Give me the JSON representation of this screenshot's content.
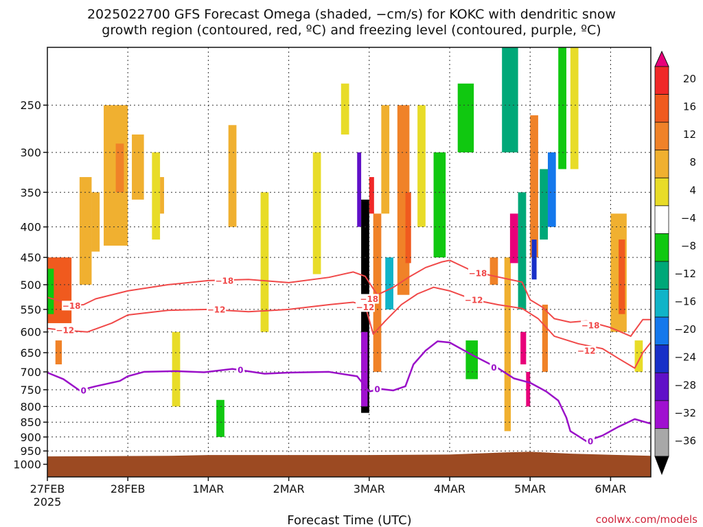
{
  "title": {
    "line1": "2025022700 GFS Forecast Omega (shaded, −cm/s) for KOKC with dendritic snow",
    "line2": "growth region (contoured, red, ºC) and freezing level (contoured, purple, ºC)"
  },
  "credit": "coolwx.com/models",
  "colors": {
    "dgz": "#f04848",
    "freezing": "#9a10c8",
    "ground": "#9c4a22"
  },
  "chart_data": {
    "type": "heatmap",
    "title": "2025022700 GFS Forecast Omega (shaded, −cm/s) for KOKC with dendritic snow growth region (contoured, red, ºC) and freezing level (contoured, purple, ºC)",
    "xlabel": "Forecast Time (UTC)",
    "ylabel": "",
    "x_unit": "days since 27FEB 00Z",
    "xlim": [
      0,
      7.5
    ],
    "ylim_hpa": [
      200,
      1050
    ],
    "y_scale": "log-pressure",
    "grid": true,
    "x_ticks": [
      {
        "label": "27FEB",
        "x": 0
      },
      {
        "label": "28FEB",
        "x": 1
      },
      {
        "label": "1MAR",
        "x": 2
      },
      {
        "label": "2MAR",
        "x": 3
      },
      {
        "label": "3MAR",
        "x": 4
      },
      {
        "label": "4MAR",
        "x": 5
      },
      {
        "label": "5MAR",
        "x": 6
      },
      {
        "label": "6MAR",
        "x": 7
      }
    ],
    "x_sublabel": "2025",
    "y_ticks": [
      "250",
      "300",
      "350",
      "400",
      "450",
      "500",
      "550",
      "600",
      "650",
      "700",
      "750",
      "800",
      "850",
      "900",
      "950",
      "1000"
    ],
    "colorbar": {
      "labels": [
        "20",
        "16",
        "12",
        "8",
        "4",
        "−4",
        "−8",
        "−12",
        "−16",
        "−20",
        "−24",
        "−28",
        "−32",
        "−36"
      ],
      "colors": [
        "#e8007a",
        "#f02828",
        "#f05a1e",
        "#f08228",
        "#f0b030",
        "#e8dc28",
        "#ffffff",
        "#10c810",
        "#00a878",
        "#10b4c8",
        "#1478ec",
        "#1830c8",
        "#6010c8",
        "#a010d0",
        "#a8a8a8",
        "#000000"
      ]
    },
    "series": [
      {
        "name": "-18",
        "color": "#f04848",
        "points": [
          [
            0,
            525
          ],
          [
            0.15,
            532
          ],
          [
            0.3,
            542
          ],
          [
            0.45,
            540
          ],
          [
            0.6,
            528
          ],
          [
            1.0,
            512
          ],
          [
            1.5,
            500
          ],
          [
            2.0,
            492
          ],
          [
            2.5,
            490
          ],
          [
            3.0,
            496
          ],
          [
            3.5,
            486
          ],
          [
            3.8,
            476
          ],
          [
            3.95,
            484
          ],
          [
            4.1,
            520
          ],
          [
            4.3,
            505
          ],
          [
            4.5,
            485
          ],
          [
            4.7,
            468
          ],
          [
            4.9,
            458
          ],
          [
            5.0,
            455
          ],
          [
            5.25,
            472
          ],
          [
            5.5,
            482
          ],
          [
            5.9,
            495
          ],
          [
            6.0,
            530
          ],
          [
            6.15,
            545
          ],
          [
            6.3,
            570
          ],
          [
            6.5,
            578
          ],
          [
            6.7,
            575
          ],
          [
            7.0,
            590
          ],
          [
            7.25,
            610
          ],
          [
            7.4,
            572
          ],
          [
            7.5,
            572
          ]
        ]
      },
      {
        "name": "-12",
        "color": "#f04848",
        "points": [
          [
            0,
            592
          ],
          [
            0.2,
            596
          ],
          [
            0.5,
            600
          ],
          [
            0.8,
            580
          ],
          [
            1.0,
            562
          ],
          [
            1.5,
            552
          ],
          [
            2.0,
            550
          ],
          [
            2.5,
            555
          ],
          [
            3.0,
            550
          ],
          [
            3.5,
            540
          ],
          [
            3.8,
            535
          ],
          [
            3.95,
            542
          ],
          [
            4.05,
            605
          ],
          [
            4.2,
            575
          ],
          [
            4.4,
            540
          ],
          [
            4.6,
            518
          ],
          [
            4.8,
            505
          ],
          [
            5.0,
            512
          ],
          [
            5.3,
            530
          ],
          [
            5.6,
            540
          ],
          [
            5.9,
            548
          ],
          [
            6.1,
            570
          ],
          [
            6.3,
            610
          ],
          [
            6.6,
            628
          ],
          [
            6.9,
            640
          ],
          [
            7.1,
            665
          ],
          [
            7.3,
            690
          ],
          [
            7.4,
            650
          ],
          [
            7.5,
            625
          ]
        ]
      },
      {
        "name": "0",
        "color": "#9a10c8",
        "points": [
          [
            0,
            702
          ],
          [
            0.2,
            720
          ],
          [
            0.4,
            752
          ],
          [
            0.6,
            740
          ],
          [
            0.9,
            725
          ],
          [
            1.0,
            712
          ],
          [
            1.2,
            700
          ],
          [
            1.6,
            698
          ],
          [
            1.95,
            701
          ],
          [
            2.3,
            692
          ],
          [
            2.7,
            705
          ],
          [
            3.0,
            702
          ],
          [
            3.5,
            700
          ],
          [
            3.85,
            712
          ],
          [
            4.0,
            755
          ],
          [
            4.15,
            748
          ],
          [
            4.3,
            752
          ],
          [
            4.45,
            740
          ],
          [
            4.55,
            680
          ],
          [
            4.7,
            645
          ],
          [
            4.85,
            622
          ],
          [
            5.0,
            625
          ],
          [
            5.3,
            658
          ],
          [
            5.6,
            690
          ],
          [
            5.8,
            718
          ],
          [
            6.0,
            730
          ],
          [
            6.2,
            755
          ],
          [
            6.35,
            782
          ],
          [
            6.45,
            835
          ],
          [
            6.5,
            880
          ],
          [
            6.7,
            915
          ],
          [
            6.9,
            895
          ],
          [
            7.1,
            865
          ],
          [
            7.3,
            840
          ],
          [
            7.5,
            855
          ]
        ]
      }
    ],
    "contour_labels": [
      {
        "text": "−18",
        "x": 0.3,
        "p": 542
      },
      {
        "text": "−12",
        "x": 0.22,
        "p": 596
      },
      {
        "text": "−18",
        "x": 2.2,
        "p": 492
      },
      {
        "text": "−12",
        "x": 2.1,
        "p": 550
      },
      {
        "text": "−18",
        "x": 4.0,
        "p": 528
      },
      {
        "text": "−12",
        "x": 3.95,
        "p": 545
      },
      {
        "text": "−18",
        "x": 5.35,
        "p": 478
      },
      {
        "text": "−12",
        "x": 5.3,
        "p": 530
      },
      {
        "text": "−18",
        "x": 6.75,
        "p": 585
      },
      {
        "text": "−12",
        "x": 6.7,
        "p": 645
      },
      {
        "text": "0",
        "x": 0.45,
        "p": 752
      },
      {
        "text": "0",
        "x": 2.4,
        "p": 695
      },
      {
        "text": "0",
        "x": 4.1,
        "p": 748
      },
      {
        "text": "0",
        "x": 5.55,
        "p": 688
      },
      {
        "text": "0",
        "x": 6.75,
        "p": 915
      }
    ],
    "ground_pressure_hpa": [
      [
        0,
        970
      ],
      [
        1.5,
        968
      ],
      [
        2.0,
        965
      ],
      [
        3.0,
        965
      ],
      [
        4.0,
        965
      ],
      [
        5.0,
        963
      ],
      [
        5.7,
        955
      ],
      [
        6.0,
        953
      ],
      [
        6.5,
        960
      ],
      [
        7.5,
        968
      ]
    ],
    "omega_cells": [
      {
        "x": [
          0.0,
          0.3
        ],
        "p": [
          450,
          580
        ],
        "level": 2
      },
      {
        "x": [
          0.0,
          0.08
        ],
        "p": [
          470,
          560
        ],
        "level": 7
      },
      {
        "x": [
          0.1,
          0.18
        ],
        "p": [
          620,
          680
        ],
        "level": 3
      },
      {
        "x": [
          0.4,
          0.55
        ],
        "p": [
          330,
          500
        ],
        "level": 4
      },
      {
        "x": [
          0.55,
          0.65
        ],
        "p": [
          350,
          440
        ],
        "level": 4
      },
      {
        "x": [
          0.7,
          1.0
        ],
        "p": [
          250,
          430
        ],
        "level": 4
      },
      {
        "x": [
          0.85,
          0.95
        ],
        "p": [
          290,
          350
        ],
        "level": 3
      },
      {
        "x": [
          1.05,
          1.2
        ],
        "p": [
          280,
          360
        ],
        "level": 4
      },
      {
        "x": [
          1.3,
          1.4
        ],
        "p": [
          300,
          420
        ],
        "level": 5
      },
      {
        "x": [
          1.4,
          1.45
        ],
        "p": [
          330,
          380
        ],
        "level": 4
      },
      {
        "x": [
          1.55,
          1.65
        ],
        "p": [
          600,
          800
        ],
        "level": 5
      },
      {
        "x": [
          2.1,
          2.2
        ],
        "p": [
          780,
          900
        ],
        "level": 7
      },
      {
        "x": [
          2.25,
          2.35
        ],
        "p": [
          270,
          400
        ],
        "level": 4
      },
      {
        "x": [
          2.65,
          2.75
        ],
        "p": [
          350,
          600
        ],
        "level": 5
      },
      {
        "x": [
          3.3,
          3.4
        ],
        "p": [
          300,
          480
        ],
        "level": 5
      },
      {
        "x": [
          3.65,
          3.75
        ],
        "p": [
          230,
          280
        ],
        "level": 5
      },
      {
        "x": [
          3.9,
          4.0
        ],
        "p": [
          360,
          820
        ],
        "level": 15
      },
      {
        "x": [
          3.85,
          3.9
        ],
        "p": [
          300,
          400
        ],
        "level": 12
      },
      {
        "x": [
          3.9,
          3.98
        ],
        "p": [
          600,
          800
        ],
        "level": 13
      },
      {
        "x": [
          4.0,
          4.06
        ],
        "p": [
          330,
          380
        ],
        "level": 1
      },
      {
        "x": [
          4.05,
          4.15
        ],
        "p": [
          380,
          700
        ],
        "level": 3
      },
      {
        "x": [
          4.15,
          4.25
        ],
        "p": [
          250,
          380
        ],
        "level": 4
      },
      {
        "x": [
          4.2,
          4.3
        ],
        "p": [
          450,
          550
        ],
        "level": 9
      },
      {
        "x": [
          4.35,
          4.5
        ],
        "p": [
          250,
          520
        ],
        "level": 3
      },
      {
        "x": [
          4.45,
          4.52
        ],
        "p": [
          350,
          460
        ],
        "level": 2
      },
      {
        "x": [
          4.6,
          4.7
        ],
        "p": [
          250,
          400
        ],
        "level": 5
      },
      {
        "x": [
          4.8,
          4.95
        ],
        "p": [
          300,
          450
        ],
        "level": 7
      },
      {
        "x": [
          5.1,
          5.3
        ],
        "p": [
          230,
          300
        ],
        "level": 7
      },
      {
        "x": [
          5.2,
          5.35
        ],
        "p": [
          620,
          720
        ],
        "level": 7
      },
      {
        "x": [
          5.5,
          5.6
        ],
        "p": [
          450,
          500
        ],
        "level": 3
      },
      {
        "x": [
          5.65,
          5.85
        ],
        "p": [
          200,
          300
        ],
        "level": 8
      },
      {
        "x": [
          5.68,
          5.76
        ],
        "p": [
          450,
          880
        ],
        "level": 4
      },
      {
        "x": [
          5.75,
          5.85
        ],
        "p": [
          380,
          460
        ],
        "level": 0
      },
      {
        "x": [
          5.85,
          5.95
        ],
        "p": [
          350,
          550
        ],
        "level": 8
      },
      {
        "x": [
          5.88,
          5.95
        ],
        "p": [
          600,
          680
        ],
        "level": 0
      },
      {
        "x": [
          5.95,
          6.0
        ],
        "p": [
          700,
          800
        ],
        "level": 0
      },
      {
        "x": [
          6.0,
          6.1
        ],
        "p": [
          260,
          450
        ],
        "level": 3
      },
      {
        "x": [
          6.02,
          6.08
        ],
        "p": [
          420,
          490
        ],
        "level": 11
      },
      {
        "x": [
          6.12,
          6.22
        ],
        "p": [
          320,
          420
        ],
        "level": 8
      },
      {
        "x": [
          6.15,
          6.22
        ],
        "p": [
          540,
          700
        ],
        "level": 3
      },
      {
        "x": [
          6.22,
          6.32
        ],
        "p": [
          300,
          400
        ],
        "level": 10
      },
      {
        "x": [
          6.35,
          6.45
        ],
        "p": [
          200,
          320
        ],
        "level": 7
      },
      {
        "x": [
          6.5,
          6.6
        ],
        "p": [
          200,
          320
        ],
        "level": 5
      },
      {
        "x": [
          7.0,
          7.2
        ],
        "p": [
          380,
          600
        ],
        "level": 4
      },
      {
        "x": [
          7.1,
          7.18
        ],
        "p": [
          420,
          560
        ],
        "level": 2
      },
      {
        "x": [
          7.3,
          7.4
        ],
        "p": [
          620,
          700
        ],
        "level": 5
      }
    ]
  }
}
